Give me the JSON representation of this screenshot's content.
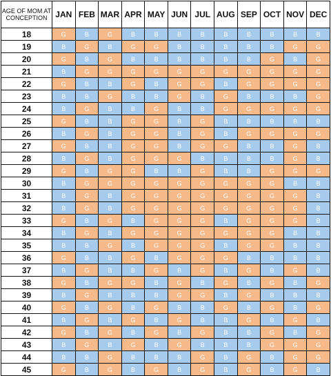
{
  "header": {
    "corner_label": "AGE OF MOM AT CONCEPTION",
    "months": [
      "JAN",
      "FEB",
      "MAR",
      "APR",
      "MAY",
      "JUN",
      "JUL",
      "AUG",
      "SEP",
      "OCT",
      "NOV",
      "DEC"
    ]
  },
  "colors": {
    "G": "#f5b98a",
    "B": "#a7cbec",
    "grid": "#111111"
  },
  "rows": [
    {
      "age": "18",
      "cells": [
        "G",
        "B",
        "G",
        "B",
        "B",
        "B",
        "B",
        "B",
        "B",
        "B",
        "B",
        "B"
      ]
    },
    {
      "age": "19",
      "cells": [
        "B",
        "G",
        "B",
        "G",
        "G",
        "B",
        "B",
        "B",
        "B",
        "B",
        "G",
        "G"
      ]
    },
    {
      "age": "20",
      "cells": [
        "G",
        "B",
        "G",
        "B",
        "B",
        "B",
        "B",
        "B",
        "B",
        "G",
        "B",
        "G"
      ]
    },
    {
      "age": "21",
      "cells": [
        "B",
        "G",
        "G",
        "G",
        "G",
        "G",
        "G",
        "G",
        "G",
        "G",
        "G",
        "G"
      ]
    },
    {
      "age": "22",
      "cells": [
        "G",
        "B",
        "B",
        "G",
        "B",
        "G",
        "G",
        "B",
        "G",
        "G",
        "G",
        "G"
      ]
    },
    {
      "age": "23",
      "cells": [
        "B",
        "B",
        "G",
        "B",
        "B",
        "G",
        "B",
        "G",
        "B",
        "B",
        "B",
        "G"
      ]
    },
    {
      "age": "24",
      "cells": [
        "B",
        "G",
        "B",
        "B",
        "G",
        "B",
        "B",
        "G",
        "G",
        "G",
        "G",
        "G"
      ]
    },
    {
      "age": "25",
      "cells": [
        "G",
        "B",
        "B",
        "G",
        "G",
        "B",
        "G",
        "B",
        "B",
        "B",
        "B",
        "B"
      ]
    },
    {
      "age": "26",
      "cells": [
        "B",
        "G",
        "B",
        "G",
        "G",
        "B",
        "G",
        "B",
        "G",
        "G",
        "G",
        "G"
      ]
    },
    {
      "age": "27",
      "cells": [
        "G",
        "B",
        "B",
        "G",
        "G",
        "B",
        "G",
        "G",
        "B",
        "B",
        "G",
        "B"
      ]
    },
    {
      "age": "28",
      "cells": [
        "B",
        "G",
        "B",
        "G",
        "G",
        "G",
        "B",
        "B",
        "B",
        "B",
        "G",
        "B"
      ]
    },
    {
      "age": "29",
      "cells": [
        "G",
        "B",
        "G",
        "G",
        "B",
        "B",
        "G",
        "B",
        "B",
        "G",
        "G",
        "G"
      ]
    },
    {
      "age": "30",
      "cells": [
        "B",
        "G",
        "G",
        "G",
        "G",
        "G",
        "G",
        "G",
        "G",
        "G",
        "B",
        "B"
      ]
    },
    {
      "age": "31",
      "cells": [
        "B",
        "G",
        "B",
        "G",
        "G",
        "G",
        "G",
        "G",
        "G",
        "G",
        "G",
        "B"
      ]
    },
    {
      "age": "32",
      "cells": [
        "B",
        "G",
        "B",
        "G",
        "G",
        "G",
        "G",
        "G",
        "G",
        "G",
        "G",
        "B"
      ]
    },
    {
      "age": "33",
      "cells": [
        "G",
        "B",
        "G",
        "B",
        "G",
        "G",
        "G",
        "B",
        "G",
        "G",
        "G",
        "B"
      ]
    },
    {
      "age": "34",
      "cells": [
        "B",
        "G",
        "B",
        "G",
        "G",
        "G",
        "G",
        "G",
        "G",
        "G",
        "B",
        "B"
      ]
    },
    {
      "age": "35",
      "cells": [
        "B",
        "B",
        "G",
        "B",
        "G",
        "G",
        "G",
        "B",
        "G",
        "G",
        "B",
        "B"
      ]
    },
    {
      "age": "36",
      "cells": [
        "G",
        "B",
        "B",
        "G",
        "B",
        "G",
        "G",
        "G",
        "B",
        "B",
        "B",
        "B"
      ]
    },
    {
      "age": "37",
      "cells": [
        "B",
        "G",
        "B",
        "B",
        "G",
        "B",
        "G",
        "B",
        "G",
        "B",
        "G",
        "B"
      ]
    },
    {
      "age": "38",
      "cells": [
        "G",
        "B",
        "G",
        "G",
        "B",
        "G",
        "B",
        "G",
        "B",
        "G",
        "B",
        "G"
      ]
    },
    {
      "age": "39",
      "cells": [
        "B",
        "G",
        "B",
        "B",
        "B",
        "G",
        "G",
        "B",
        "G",
        "B",
        "B",
        "B"
      ]
    },
    {
      "age": "40",
      "cells": [
        "G",
        "B",
        "G",
        "B",
        "G",
        "B",
        "B",
        "G",
        "B",
        "G",
        "B",
        "G"
      ]
    },
    {
      "age": "41",
      "cells": [
        "B",
        "G",
        "B",
        "G",
        "B",
        "G",
        "B",
        "B",
        "G",
        "B",
        "G",
        "B"
      ]
    },
    {
      "age": "42",
      "cells": [
        "G",
        "B",
        "G",
        "B",
        "G",
        "B",
        "G",
        "B",
        "B",
        "G",
        "B",
        "G"
      ]
    },
    {
      "age": "43",
      "cells": [
        "B",
        "G",
        "B",
        "G",
        "B",
        "G",
        "B",
        "B",
        "B",
        "G",
        "G",
        "G"
      ]
    },
    {
      "age": "44",
      "cells": [
        "B",
        "B",
        "G",
        "B",
        "B",
        "B",
        "G",
        "B",
        "G",
        "B",
        "G",
        "G"
      ]
    },
    {
      "age": "45",
      "cells": [
        "G",
        "B",
        "G",
        "B",
        "G",
        "B",
        "G",
        "B",
        "G",
        "B",
        "G",
        "B"
      ]
    }
  ]
}
